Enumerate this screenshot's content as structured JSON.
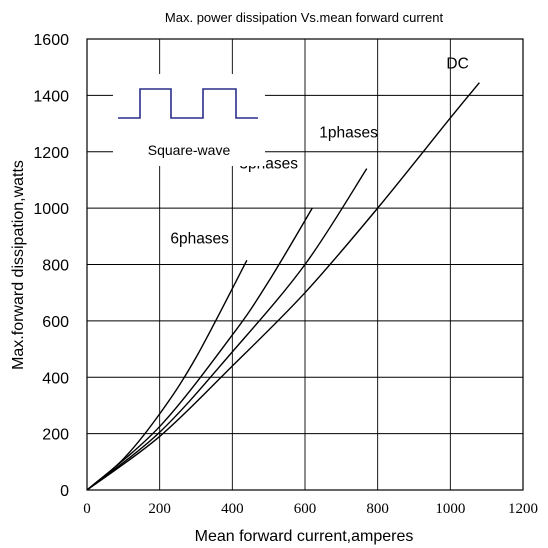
{
  "chart_data": {
    "type": "line",
    "title": "Max. power dissipation Vs.mean forward current",
    "xlabel": "Mean forward current,amperes",
    "ylabel": "Max.forward dissipation,watts",
    "xlim": [
      0,
      1200
    ],
    "ylim": [
      0,
      1600
    ],
    "grid": true,
    "x_ticks": [
      "0",
      "200",
      "400",
      "600",
      "800",
      "1000",
      "1200"
    ],
    "y_ticks": [
      "0",
      "200",
      "400",
      "600",
      "800",
      "1000",
      "1200",
      "1400",
      "1600"
    ],
    "series": [
      {
        "name": "DC",
        "x": [
          0,
          200,
          400,
          600,
          800,
          1000,
          1080
        ],
        "y": [
          0,
          190,
          440,
          700,
          1000,
          1320,
          1445
        ]
      },
      {
        "name": "1phases",
        "x": [
          0,
          200,
          400,
          600,
          770
        ],
        "y": [
          0,
          205,
          490,
          800,
          1140
        ]
      },
      {
        "name": "3phases",
        "x": [
          0,
          200,
          400,
          500,
          620
        ],
        "y": [
          0,
          225,
          550,
          740,
          1000
        ]
      },
      {
        "name": "6phases",
        "x": [
          0,
          100,
          200,
          300,
          440
        ],
        "y": [
          0,
          110,
          270,
          470,
          815
        ]
      }
    ],
    "annotations": [
      {
        "text": "DC",
        "x": 1020,
        "y": 1495
      },
      {
        "text": "1phases",
        "x": 720,
        "y": 1250
      },
      {
        "text": "3phases",
        "x": 500,
        "y": 1140
      },
      {
        "text": "6phases",
        "x": 310,
        "y": 875
      }
    ],
    "inset": {
      "label": "Square-wave",
      "icon": "square-wave-icon"
    }
  }
}
